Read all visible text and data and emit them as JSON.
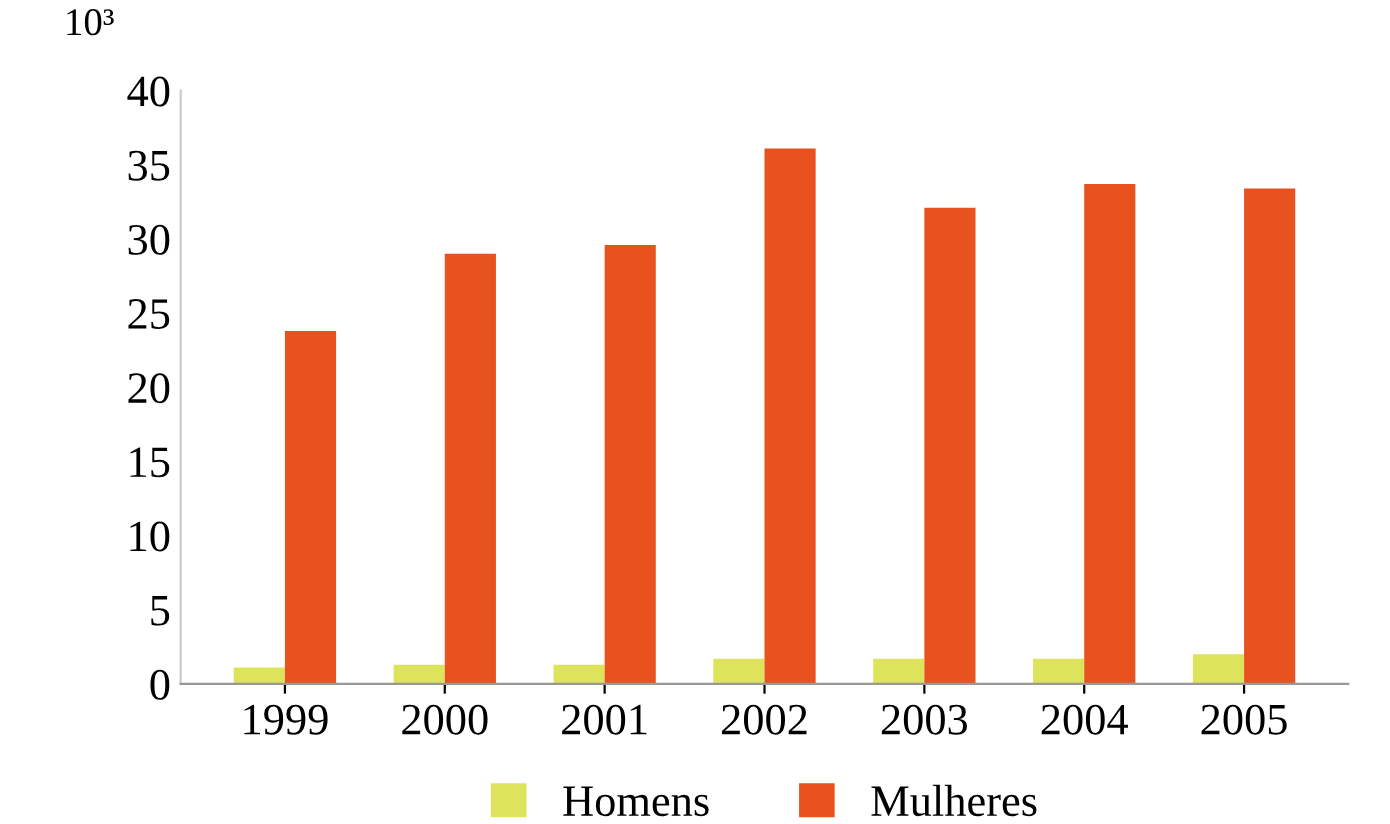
{
  "chart_data": {
    "type": "bar",
    "ylabel": "10³",
    "categories": [
      "1999",
      "2000",
      "2001",
      "2002",
      "2003",
      "2004",
      "2005"
    ],
    "series": [
      {
        "name": "Homens",
        "color": "#dde35a",
        "values": [
          1.1,
          1.3,
          1.3,
          1.7,
          1.7,
          1.7,
          2.0
        ]
      },
      {
        "name": "Mulheres",
        "color": "#e8521e",
        "values": [
          23.8,
          29.0,
          29.6,
          36.1,
          32.1,
          33.7,
          33.4
        ]
      }
    ],
    "ylim": [
      0,
      40
    ],
    "yticks": [
      0,
      5,
      10,
      15,
      20,
      25,
      30,
      35,
      40
    ],
    "grid": false,
    "legend": "bottom"
  }
}
